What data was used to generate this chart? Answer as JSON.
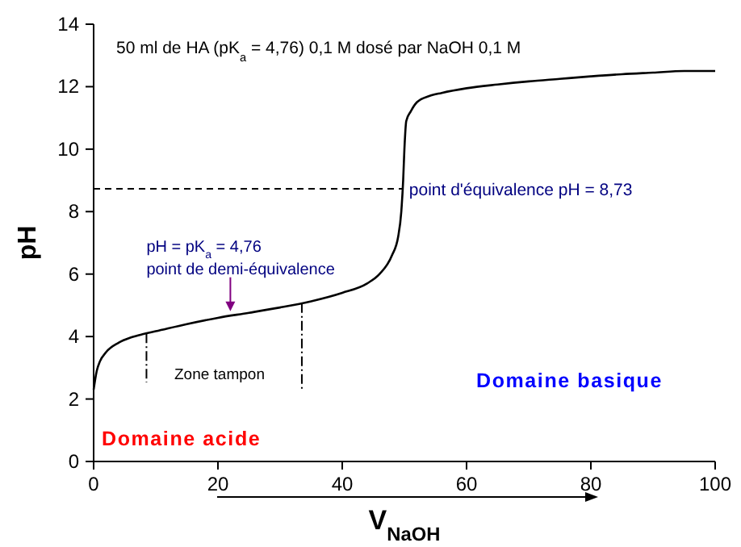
{
  "chart_data": {
    "type": "line",
    "title": "50 ml de HA (pK$_{a}$ = 4,76) 0,1 M dosé par NaOH 0,1 M",
    "xlabel": "V$_{NaOH}$",
    "ylabel": "pH",
    "x": [
      0,
      0.5,
      1,
      2,
      4,
      6,
      8,
      10,
      15,
      20,
      25,
      30,
      35,
      40,
      44,
      46,
      48,
      49,
      49.5,
      49.8,
      50,
      50.3,
      51,
      52,
      54,
      56,
      60,
      65,
      70,
      75,
      80,
      85,
      90,
      95,
      100
    ],
    "series": [
      {
        "color": "#000000",
        "values": [
          2.3,
          2.9,
          3.2,
          3.5,
          3.8,
          3.97,
          4.08,
          4.17,
          4.4,
          4.6,
          4.76,
          4.93,
          5.13,
          5.4,
          5.7,
          6.0,
          6.6,
          7.2,
          8.0,
          9.0,
          10.0,
          10.9,
          11.2,
          11.5,
          11.7,
          11.8,
          11.95,
          12.07,
          12.17,
          12.25,
          12.33,
          12.4,
          12.45,
          12.5,
          12.5
        ]
      }
    ],
    "xlim": [
      0,
      100
    ],
    "xticks": [
      0,
      20,
      40,
      60,
      80,
      100
    ],
    "ylim": [
      0,
      14
    ],
    "yticks": [
      0,
      2,
      4,
      6,
      8,
      10,
      12,
      14
    ],
    "ref_lines": [
      {
        "axis": "y",
        "value": 8.73,
        "label": "point d'équivalence pH = 8,73",
        "line_style": "dashed"
      },
      {
        "axis": "x",
        "value": 8.5,
        "line_style": "dashed"
      },
      {
        "axis": "x",
        "value": 33.5,
        "line_style": "dashed"
      }
    ],
    "annotations": [
      {
        "text": "pH = pK$_{a}$ = 4,76\npoint de demi-équivalence",
        "x": 22,
        "y": 4.76
      },
      "Zone tampon",
      "Domaine acide",
      "Domaine basique"
    ],
    "grid": false,
    "marker": "none",
    "line_style": "solid"
  }
}
